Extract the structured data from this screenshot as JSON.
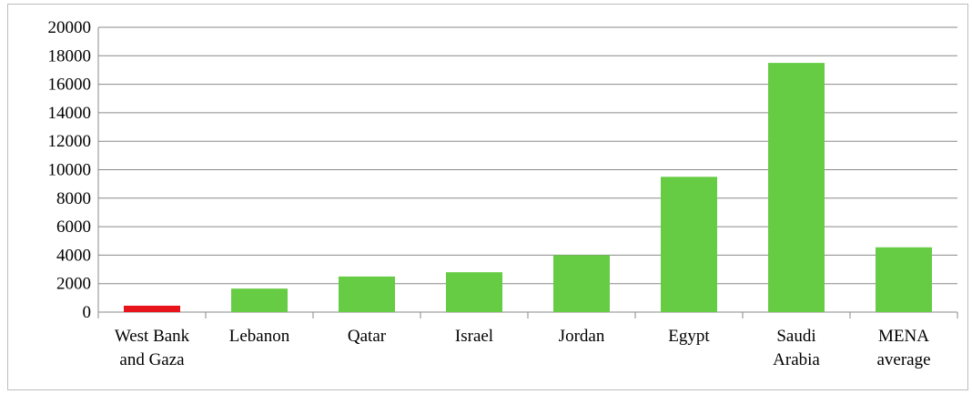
{
  "chart_data": {
    "type": "bar",
    "title": "",
    "xlabel": "",
    "ylabel": "",
    "ylim": [
      0,
      20000
    ],
    "yticks": [
      0,
      2000,
      4000,
      6000,
      8000,
      10000,
      12000,
      14000,
      16000,
      18000,
      20000
    ],
    "grid": true,
    "legend": "none",
    "categories": [
      [
        "West Bank",
        "and Gaza"
      ],
      [
        "Lebanon"
      ],
      [
        "Qatar"
      ],
      [
        "Israel"
      ],
      [
        "Jordan"
      ],
      [
        "Egypt"
      ],
      [
        "Saudi",
        "Arabia"
      ],
      [
        "MENA",
        "average"
      ]
    ],
    "values": [
      450,
      1650,
      2500,
      2800,
      4000,
      9500,
      17500,
      4550
    ],
    "colors": [
      "#e8141b",
      "#66cc44",
      "#66cc44",
      "#66cc44",
      "#66cc44",
      "#66cc44",
      "#66cc44",
      "#66cc44"
    ]
  }
}
